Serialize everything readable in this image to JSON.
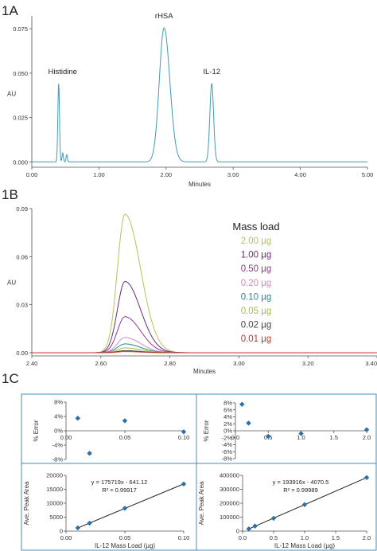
{
  "colors": {
    "trace": "#3d9cb8",
    "box": "#4a89b4",
    "marker": "#2a6fa6",
    "fit_line": "#222222",
    "axis": "#555555"
  },
  "chart_data": [
    {
      "id": "1A",
      "panel_label": "1A",
      "type": "line",
      "xlabel": "Minutes",
      "ylabel": "AU",
      "xlim": [
        0,
        5
      ],
      "ylim": [
        -0.003,
        0.08
      ],
      "x_ticks": [
        "0.00",
        "1.00",
        "2.00",
        "3.00",
        "4.00",
        "5.00"
      ],
      "x_tick_values": [
        0,
        1,
        2,
        3,
        4,
        5
      ],
      "y_ticks": [
        "0.000",
        "0.025",
        "0.050",
        "0.075"
      ],
      "y_tick_values": [
        0,
        0.025,
        0.05,
        0.075
      ],
      "peaks": [
        {
          "label": "Histidine",
          "time": 0.4,
          "height": 0.044,
          "width": 0.012
        },
        {
          "label": "",
          "time": 0.46,
          "height": 0.005,
          "width": 0.01
        },
        {
          "label": "",
          "time": 0.52,
          "height": 0.004,
          "width": 0.01
        },
        {
          "label": "rHSA",
          "time": 1.97,
          "height": 0.0755,
          "width": 0.075
        },
        {
          "label": "IL-12",
          "time": 2.68,
          "height": 0.044,
          "width": 0.028
        }
      ]
    },
    {
      "id": "1B",
      "panel_label": "1B",
      "type": "line",
      "xlabel": "Minutes",
      "ylabel": "AU",
      "xlim": [
        2.4,
        3.4
      ],
      "ylim": [
        -0.002,
        0.09
      ],
      "x_ticks": [
        "2.40",
        "2.60",
        "2.80",
        "3.00",
        "3.20",
        "3.40"
      ],
      "x_tick_values": [
        2.4,
        2.6,
        2.8,
        3.0,
        3.2,
        3.4
      ],
      "y_ticks": [
        "0.00",
        "0.03",
        "0.06",
        "0.09"
      ],
      "y_tick_values": [
        0,
        0.03,
        0.06,
        0.09
      ],
      "legend_title": "Mass load",
      "series": [
        {
          "name": "2.00 µg",
          "height": 0.0865,
          "color": "#b7c25a"
        },
        {
          "name": "1.00 µg",
          "height": 0.0445,
          "color": "#6b2a7a"
        },
        {
          "name": "0.50 µg",
          "height": 0.0225,
          "color": "#8e3a88"
        },
        {
          "name": "0.20 µg",
          "height": 0.0095,
          "color": "#d889c0"
        },
        {
          "name": "0.10 µg",
          "height": 0.0055,
          "color": "#1e8a9a"
        },
        {
          "name": "0.05 µg",
          "height": 0.003,
          "color": "#a5c03c"
        },
        {
          "name": "0.02 µg",
          "height": 0.0013,
          "color": "#444444"
        },
        {
          "name": "0.01 µg",
          "height": 0.0007,
          "color": "#c0392b"
        }
      ]
    },
    {
      "id": "1C-error-low",
      "panel_label": "1C",
      "type": "scatter",
      "ylabel": "% Error",
      "xlim": [
        0,
        0.1
      ],
      "ylim": [
        -8,
        8
      ],
      "x_ticks": [
        "0.00",
        "0.05",
        "0.10"
      ],
      "x_tick_values": [
        0,
        0.05,
        0.1
      ],
      "y_ticks": [
        "8%",
        "4%",
        "0%",
        "-4%",
        "-8%"
      ],
      "y_tick_values": [
        8,
        4,
        0,
        -4,
        -8
      ],
      "x": [
        0.01,
        0.02,
        0.05,
        0.1
      ],
      "y": [
        3.5,
        -6.3,
        2.8,
        -0.3
      ]
    },
    {
      "id": "1C-error-high",
      "type": "scatter",
      "ylabel": "% Error",
      "xlim": [
        0,
        2
      ],
      "ylim": [
        -8,
        8
      ],
      "x_ticks": [
        "0.0",
        "0.5",
        "1.0",
        "1.5",
        "2.0"
      ],
      "x_tick_values": [
        0,
        0.5,
        1,
        1.5,
        2
      ],
      "y_ticks": [
        "8%",
        "6%",
        "4%",
        "2%",
        "0%",
        "-2%",
        "-4%",
        "-6%",
        "-8%"
      ],
      "y_tick_values": [
        8,
        6,
        4,
        2,
        0,
        -2,
        -4,
        -6,
        -8
      ],
      "x": [
        0.1,
        0.2,
        0.5,
        1.0,
        2.0
      ],
      "y": [
        7.6,
        2.2,
        -1.6,
        -0.8,
        0.3
      ]
    },
    {
      "id": "1C-linear-low",
      "type": "scatter",
      "xlabel": "IL-12 Mass Load (µg)",
      "ylabel": "Ave. Peak Area",
      "xlim": [
        0,
        0.1
      ],
      "ylim": [
        0,
        20000
      ],
      "x_ticks": [
        "0.00",
        "0.05",
        "0.10"
      ],
      "x_tick_values": [
        0,
        0.05,
        0.1
      ],
      "y_ticks": [
        "20000",
        "15000",
        "10000",
        "5000",
        "0"
      ],
      "y_tick_values": [
        20000,
        15000,
        10000,
        5000,
        0
      ],
      "x": [
        0.01,
        0.02,
        0.05,
        0.1
      ],
      "y": [
        1150,
        2850,
        8200,
        16900
      ],
      "fit": {
        "slope": 175719,
        "intercept": -641.12
      },
      "equation": "y = 175719x - 641.12",
      "r2": "R² = 0.99917"
    },
    {
      "id": "1C-linear-high",
      "type": "scatter",
      "xlabel": "IL-12 Mass Load (µg)",
      "ylabel": "Ave. Peak Area",
      "xlim": [
        0,
        2
      ],
      "ylim": [
        0,
        400000
      ],
      "x_ticks": [
        "0.0",
        "0.5",
        "1.0",
        "1.5",
        "2.0"
      ],
      "x_tick_values": [
        0,
        0.5,
        1,
        1.5,
        2
      ],
      "y_ticks": [
        "400000",
        "300000",
        "200000",
        "100000",
        "0"
      ],
      "y_tick_values": [
        400000,
        300000,
        200000,
        100000,
        0
      ],
      "x": [
        0.1,
        0.2,
        0.5,
        1.0,
        2.0
      ],
      "y": [
        16000,
        36000,
        92000,
        190000,
        384000
      ],
      "fit": {
        "slope": 193916,
        "intercept": -4070.5
      },
      "equation": "y = 193916x - 4070.5",
      "r2": "R² = 0.99989"
    }
  ]
}
